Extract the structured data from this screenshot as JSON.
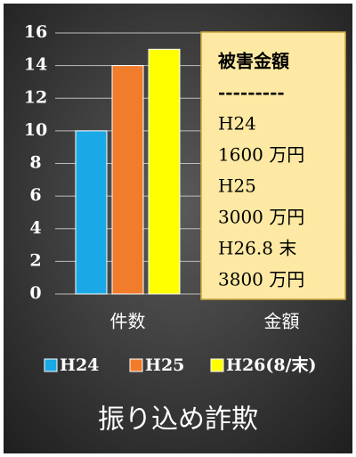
{
  "chart_data": {
    "type": "bar",
    "title": "振り込め詐欺",
    "categories": [
      "件数",
      "金額"
    ],
    "series": [
      {
        "name": "H24",
        "color": "#1aa9e6",
        "values": [
          10,
          null
        ]
      },
      {
        "name": "H25",
        "color": "#f07c2c",
        "values": [
          14,
          null
        ]
      },
      {
        "name": "H26(8/末)",
        "color": "#ffff00",
        "values": [
          15,
          null
        ]
      }
    ],
    "ylim": [
      0,
      16
    ],
    "yticks": [
      0,
      2,
      4,
      6,
      8,
      10,
      12,
      14,
      16
    ],
    "grid": true,
    "legend": "bottom",
    "annotation": [
      "被害金額",
      "---------",
      "H24",
      "1600 万円",
      "H25",
      "3000 万円",
      "H26.8 末",
      "3800 万円"
    ]
  }
}
